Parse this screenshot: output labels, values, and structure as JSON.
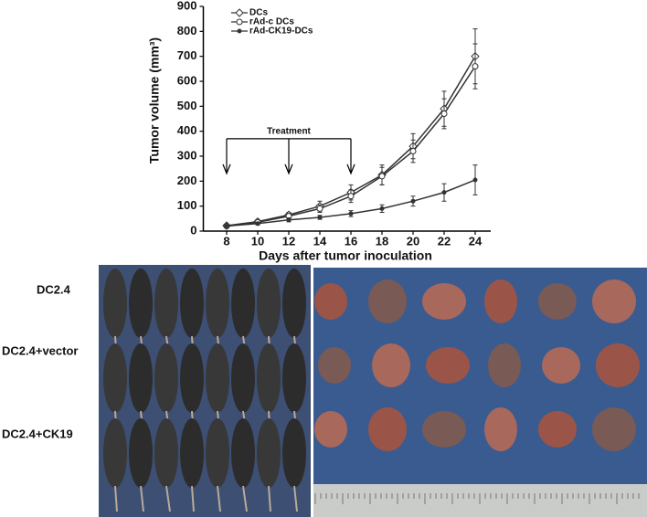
{
  "chart_data": {
    "type": "line",
    "x_label": "Days after tumor inoculation",
    "y_label": "Tumor volume (mm³)",
    "x": [
      8,
      10,
      12,
      14,
      16,
      18,
      20,
      22,
      24
    ],
    "series": [
      {
        "name": "DCs",
        "color": "#333333",
        "marker": "diamond-open",
        "values": [
          22,
          38,
          65,
          100,
          155,
          225,
          340,
          490,
          700
        ],
        "errors": [
          5,
          8,
          10,
          20,
          30,
          40,
          50,
          70,
          110
        ]
      },
      {
        "name": "rAd-c DCs",
        "color": "#333333",
        "marker": "circle-open",
        "values": [
          20,
          35,
          60,
          90,
          140,
          220,
          320,
          470,
          660
        ],
        "errors": [
          5,
          7,
          10,
          15,
          25,
          35,
          45,
          60,
          90
        ]
      },
      {
        "name": "rAd-CK19-DCs",
        "color": "#333333",
        "marker": "filled",
        "values": [
          20,
          30,
          45,
          55,
          70,
          90,
          120,
          155,
          205
        ],
        "errors": [
          5,
          5,
          8,
          8,
          12,
          15,
          20,
          35,
          60
        ]
      }
    ],
    "annotation": {
      "text": "Treatment",
      "x": [
        8,
        12,
        16
      ],
      "y": 370
    },
    "xlim": [
      6.5,
      25
    ],
    "ylim": [
      0,
      900
    ],
    "xticks": [
      8,
      10,
      12,
      14,
      16,
      18,
      20,
      22,
      24
    ],
    "yticks": [
      0,
      100,
      200,
      300,
      400,
      500,
      600,
      700,
      800,
      900
    ]
  },
  "photo_labels": [
    "DC2.4",
    "DC2.4+vector",
    "DC2.4+CK19"
  ]
}
